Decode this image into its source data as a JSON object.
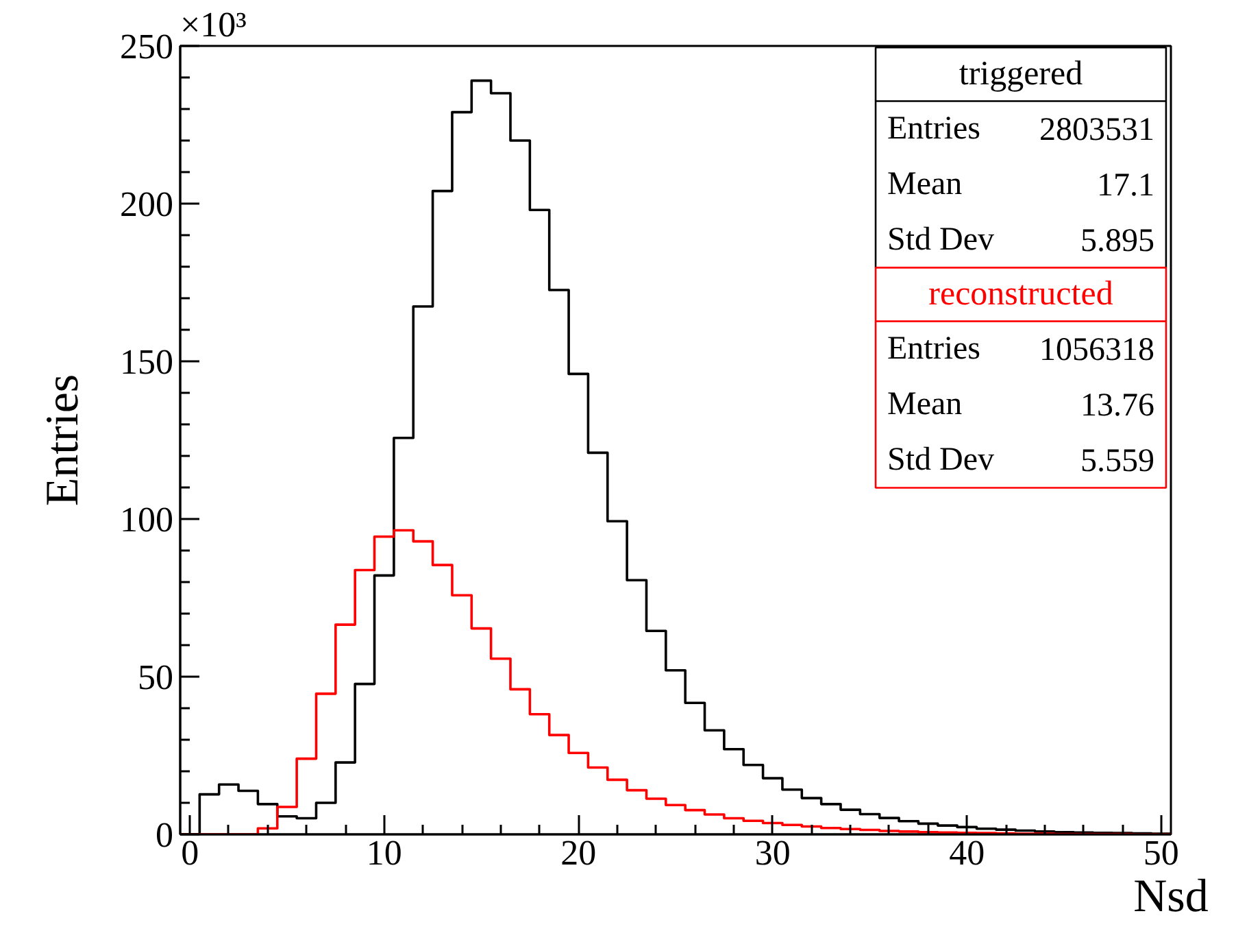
{
  "chart_data": {
    "type": "histogram",
    "xlabel": "Nsd",
    "ylabel": "Entries",
    "bins": [
      -0.5,
      0.5,
      1.5,
      2.5,
      3.5,
      4.5,
      5.5,
      6.5,
      7.5,
      8.5,
      9.5,
      10.5,
      11.5,
      12.5,
      13.5,
      14.5,
      15.5,
      16.5,
      17.5,
      18.5,
      19.5,
      20.5,
      21.5,
      22.5,
      23.5,
      24.5,
      25.5,
      26.5,
      27.5,
      28.5,
      29.5,
      30.5,
      31.5,
      32.5,
      33.5,
      34.5,
      35.5,
      36.5,
      37.5,
      38.5,
      39.5,
      40.5,
      41.5,
      42.5,
      43.5,
      44.5,
      45.5,
      46.5,
      47.5,
      48.5,
      49.5,
      50.5
    ],
    "series": [
      {
        "name": "triggered",
        "color": "#000000",
        "values": [
          0,
          12.7,
          15.8,
          13.8,
          9.6,
          5.7,
          5.1,
          10,
          22.8,
          47.7,
          82.1,
          125.7,
          167.4,
          204,
          229,
          239,
          235,
          220,
          198,
          172.6,
          146,
          121,
          99.3,
          80.6,
          64.5,
          52,
          41.7,
          33,
          27,
          22,
          17.8,
          14.2,
          11.5,
          9.6,
          7.8,
          6.4,
          5.2,
          4.2,
          3.4,
          2.8,
          2.3,
          1.8,
          1.5,
          1.2,
          0.9,
          0.7,
          0.6,
          0.5,
          0.4,
          0.3,
          0.2
        ]
      },
      {
        "name": "reconstructed",
        "color": "#ff0000",
        "values": [
          0,
          0,
          0,
          0,
          1.9,
          8.7,
          24,
          44.6,
          66.5,
          83.8,
          94.4,
          96.4,
          92.9,
          85.4,
          75.8,
          65.3,
          55.7,
          46,
          38.1,
          31.5,
          25.8,
          21.2,
          17.3,
          14,
          11.3,
          9.3,
          7.7,
          6.3,
          5.1,
          4.3,
          3.6,
          3,
          2.5,
          2,
          1.7,
          1.4,
          1.1,
          0.9,
          0.7,
          0.6,
          0.5,
          0.4,
          0.3,
          0.2,
          0.2,
          0.1,
          0.1,
          0.1,
          0.1,
          0,
          0
        ]
      }
    ],
    "xlim": [
      -0.5,
      50.5
    ],
    "ylim": [
      0,
      250
    ],
    "xticks": [
      0,
      10,
      20,
      30,
      40,
      50
    ],
    "yticks": [
      0,
      50,
      100,
      150,
      200,
      250
    ],
    "legend": "top right",
    "grid": false,
    "annotations": [
      "×10³",
      "Entries",
      "2803531",
      "Mean",
      "17.1",
      "Std Dev",
      "5.895",
      "Entries",
      "1056318",
      "Mean",
      "13.76",
      "Std Dev",
      "5.559"
    ]
  }
}
